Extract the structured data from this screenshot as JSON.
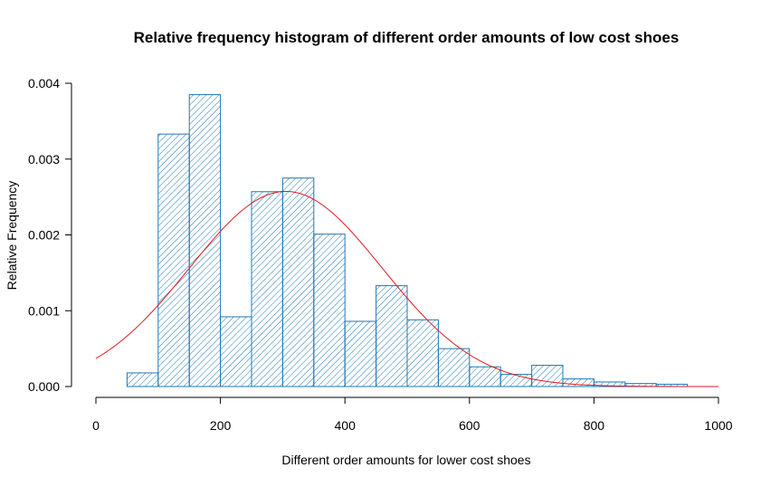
{
  "chart_data": {
    "type": "bar",
    "title": "Relative frequency histogram of different order amounts of low cost shoes",
    "xlabel": "Different order amounts for lower cost shoes",
    "ylabel": "Relative Frequency",
    "xlim": [
      0,
      1000
    ],
    "ylim": [
      0,
      0.004
    ],
    "x_ticks": [
      "0",
      "200",
      "400",
      "600",
      "800",
      "1000"
    ],
    "y_ticks": [
      "0.000",
      "0.001",
      "0.002",
      "0.003",
      "0.004"
    ],
    "bin_width": 50,
    "bins": [
      {
        "start": 50,
        "end": 100,
        "value": 0.00018
      },
      {
        "start": 100,
        "end": 150,
        "value": 0.00333
      },
      {
        "start": 150,
        "end": 200,
        "value": 0.00385
      },
      {
        "start": 200,
        "end": 250,
        "value": 0.00092
      },
      {
        "start": 250,
        "end": 300,
        "value": 0.00257
      },
      {
        "start": 300,
        "end": 350,
        "value": 0.00275
      },
      {
        "start": 350,
        "end": 400,
        "value": 0.00201
      },
      {
        "start": 400,
        "end": 450,
        "value": 0.00086
      },
      {
        "start": 450,
        "end": 500,
        "value": 0.00133
      },
      {
        "start": 500,
        "end": 550,
        "value": 0.00088
      },
      {
        "start": 550,
        "end": 600,
        "value": 0.0005
      },
      {
        "start": 600,
        "end": 650,
        "value": 0.00026
      },
      {
        "start": 650,
        "end": 700,
        "value": 0.00016
      },
      {
        "start": 700,
        "end": 750,
        "value": 0.00028
      },
      {
        "start": 750,
        "end": 800,
        "value": 0.0001
      },
      {
        "start": 800,
        "end": 850,
        "value": 6e-05
      },
      {
        "start": 850,
        "end": 900,
        "value": 4e-05
      },
      {
        "start": 900,
        "end": 950,
        "value": 3e-05
      }
    ],
    "normal_curve": {
      "mean": 305,
      "sd": 155,
      "color": "#e41a1c"
    },
    "bar_color": "#1f78b4",
    "hatching": "diagonal",
    "grid": false
  }
}
